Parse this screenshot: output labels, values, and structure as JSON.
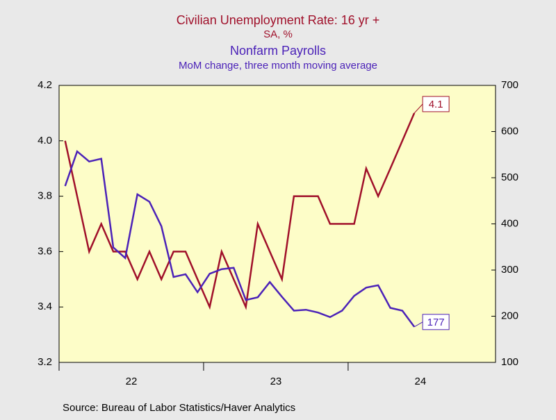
{
  "chart_data": {
    "type": "line",
    "title": "Civilian Unemployment Rate: 16 yr +",
    "subtitle": "SA, %",
    "title2": "Nonfarm Payrolls",
    "subtitle2": "MoM change, three month moving average",
    "source": "Source:  Bureau of Labor Statistics/Haver Analytics",
    "x": [
      22.042,
      22.125,
      22.208,
      22.292,
      22.375,
      22.458,
      22.542,
      22.625,
      22.708,
      22.792,
      22.875,
      22.958,
      23.042,
      23.125,
      23.208,
      23.292,
      23.375,
      23.458,
      23.542,
      23.625,
      23.708,
      23.792,
      23.875,
      23.958,
      24.042,
      24.125,
      24.208,
      24.292,
      24.375,
      24.458
    ],
    "xlim": [
      22.0,
      25.02
    ],
    "xticks": [
      {
        "value": 22.5,
        "label": "22"
      },
      {
        "value": 23.5,
        "label": "23"
      },
      {
        "value": 24.5,
        "label": "24"
      }
    ],
    "ylim": [
      3.2,
      4.2
    ],
    "yticks": [
      3.2,
      3.4,
      3.6,
      3.8,
      {
        "value": 4,
        "label": "4.0"
      },
      4.2
    ],
    "y2lim": [
      100,
      700
    ],
    "y2ticks": [
      100,
      200,
      300,
      400,
      500,
      600,
      700
    ],
    "series": [
      {
        "name": "Civilian Unemployment Rate: 16 yr +",
        "color": "#a0102a",
        "values": [
          4.0,
          3.8,
          3.6,
          3.7,
          3.6,
          3.6,
          3.5,
          3.6,
          3.5,
          3.6,
          3.6,
          3.5,
          3.4,
          3.6,
          3.5,
          3.4,
          3.7,
          3.6,
          3.5,
          3.8,
          3.8,
          3.8,
          3.7,
          3.7,
          3.7,
          3.9,
          3.8,
          3.9,
          4.0,
          4.1
        ]
      },
      {
        "name": "Nonfarm Payrolls",
        "color": "#4b22b8",
        "axis": "y2",
        "values": [
          482,
          557,
          535,
          541,
          349,
          326,
          464,
          448,
          395,
          285,
          291,
          252,
          292,
          302,
          305,
          235,
          241,
          274,
          242,
          212,
          214,
          208,
          198,
          212,
          244,
          262,
          267,
          218,
          212,
          177
        ]
      }
    ]
  }
}
